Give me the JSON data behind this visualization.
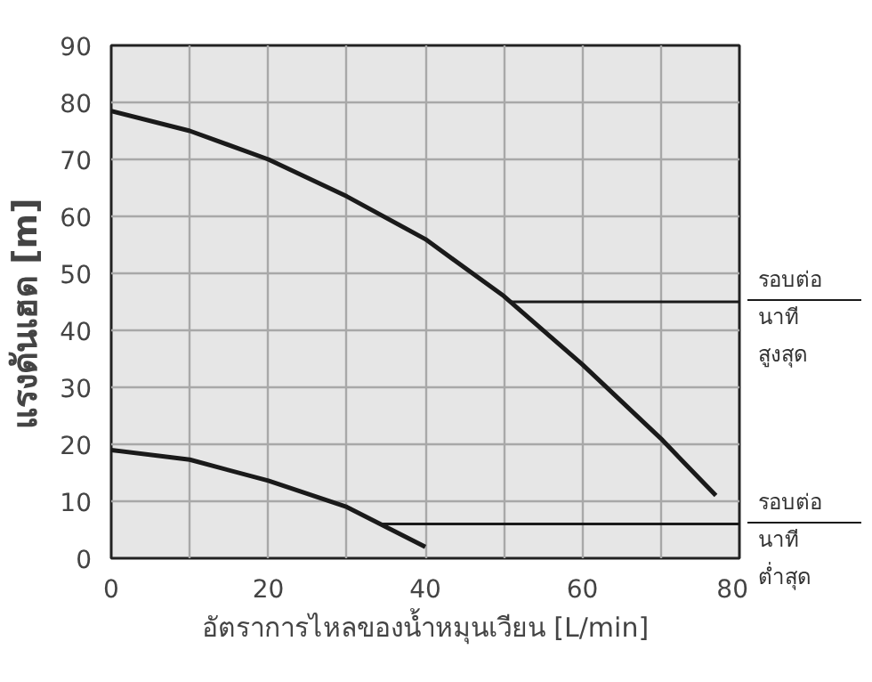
{
  "chart_data": {
    "type": "line",
    "xlabel": "อัตราการไหลของน้ำหมุนเวียน [L/min]",
    "ylabel": "แรงดันเฮด   [m]",
    "x": [
      0,
      10,
      20,
      30,
      40,
      50,
      60,
      70,
      77
    ],
    "series": [
      {
        "color": "#1a1a1a",
        "values": [
          78.5,
          75,
          70,
          63.5,
          56,
          46,
          34,
          21,
          11
        ]
      },
      {
        "color": "#1a1a1a",
        "x": [
          0,
          10,
          20,
          30,
          40
        ],
        "values": [
          19,
          17.3,
          13.6,
          9,
          2
        ]
      }
    ],
    "xlim": [
      0,
      80
    ],
    "xticks": [
      0,
      {
        "value": 10,
        "label": null
      },
      20,
      {
        "value": 30,
        "label": null
      },
      40,
      {
        "value": 50,
        "label": null
      },
      60,
      {
        "value": 70,
        "label": null
      },
      80
    ],
    "ylim": [
      0,
      90
    ],
    "yticks": [
      0,
      10,
      20,
      30,
      40,
      50,
      60,
      70,
      80,
      90
    ],
    "grid": true,
    "marker": "none",
    "line_style": "solid",
    "annotations": [
      {
        "text": "รอบต่อ\nนาที\nสูงสุด",
        "x": 51,
        "y": 45
      },
      {
        "text": "รอบต่อ\nนาที\nต่ำสุด",
        "x": 34.3,
        "y": 6
      }
    ]
  }
}
